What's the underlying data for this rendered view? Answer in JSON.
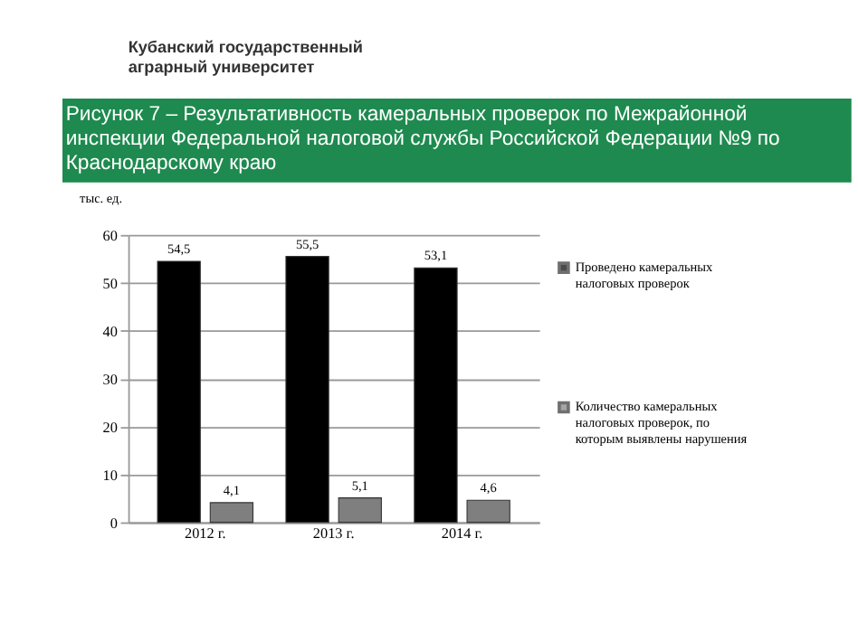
{
  "chart_data": {
    "type": "bar",
    "title": "Рисунок 7  – Результативность камеральных проверок по Межрайонной инспекции Федеральной налоговой службы Российской Федерации  №9 по Краснодарскому краю",
    "ylabel": "тыс. ед.",
    "annotations": [
      "Кубанский государственный аграрный университет"
    ],
    "categories": [
      "2012 г.",
      "2013 г.",
      "2014 г."
    ],
    "series": [
      {
        "name": "Проведено камеральных налоговых проверок",
        "color": "#000000",
        "values": [
          54.5,
          55.5,
          53.1
        ],
        "value_labels": [
          "54,5",
          "55,5",
          "53,1"
        ]
      },
      {
        "name": "Количество камеральных налоговых проверок, по которым выявлены нарушения",
        "color": "#7f7f7f",
        "values": [
          4.1,
          5.1,
          4.6
        ],
        "value_labels": [
          "4,1",
          "5,1",
          "4,6"
        ]
      }
    ],
    "ylim": [
      0,
      60
    ],
    "yticks": [
      0,
      10,
      20,
      30,
      40,
      50,
      60
    ],
    "grid": "y",
    "legend": "right"
  }
}
